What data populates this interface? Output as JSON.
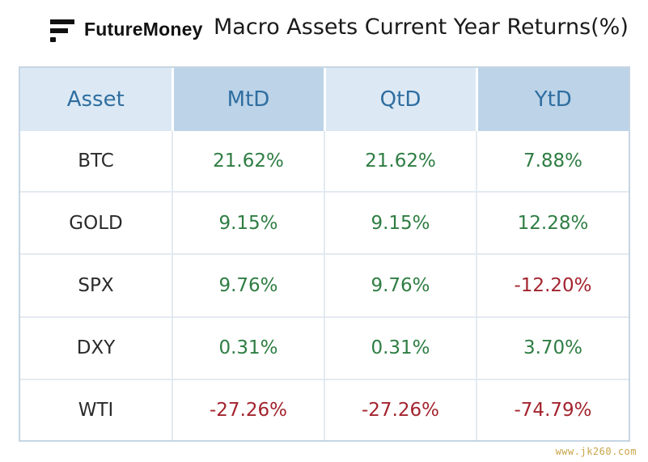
{
  "header": {
    "brand": "FutureMoney",
    "title": "Macro Assets Current Year Returns(%)"
  },
  "colors": {
    "positive": "#2e7d43",
    "negative": "#a3242e",
    "header_text": "#2f6ea0",
    "header_bg_light": "#dce9f4",
    "header_bg_dark": "#bcd3e8"
  },
  "chart_data": {
    "type": "table",
    "title": "Macro Assets Current Year Returns(%)",
    "columns": [
      "Asset",
      "MtD",
      "QtD",
      "YtD"
    ],
    "rows": [
      {
        "asset": "BTC",
        "mtd": "21.62%",
        "qtd": "21.62%",
        "ytd": "7.88%"
      },
      {
        "asset": "GOLD",
        "mtd": "9.15%",
        "qtd": "9.15%",
        "ytd": "12.28%"
      },
      {
        "asset": "SPX",
        "mtd": "9.76%",
        "qtd": "9.76%",
        "ytd": "-12.20%"
      },
      {
        "asset": "DXY",
        "mtd": "0.31%",
        "qtd": "0.31%",
        "ytd": "3.70%"
      },
      {
        "asset": "WTI",
        "mtd": "-27.26%",
        "qtd": "-27.26%",
        "ytd": "-74.79%"
      }
    ]
  },
  "watermark": "www.jk260.com"
}
